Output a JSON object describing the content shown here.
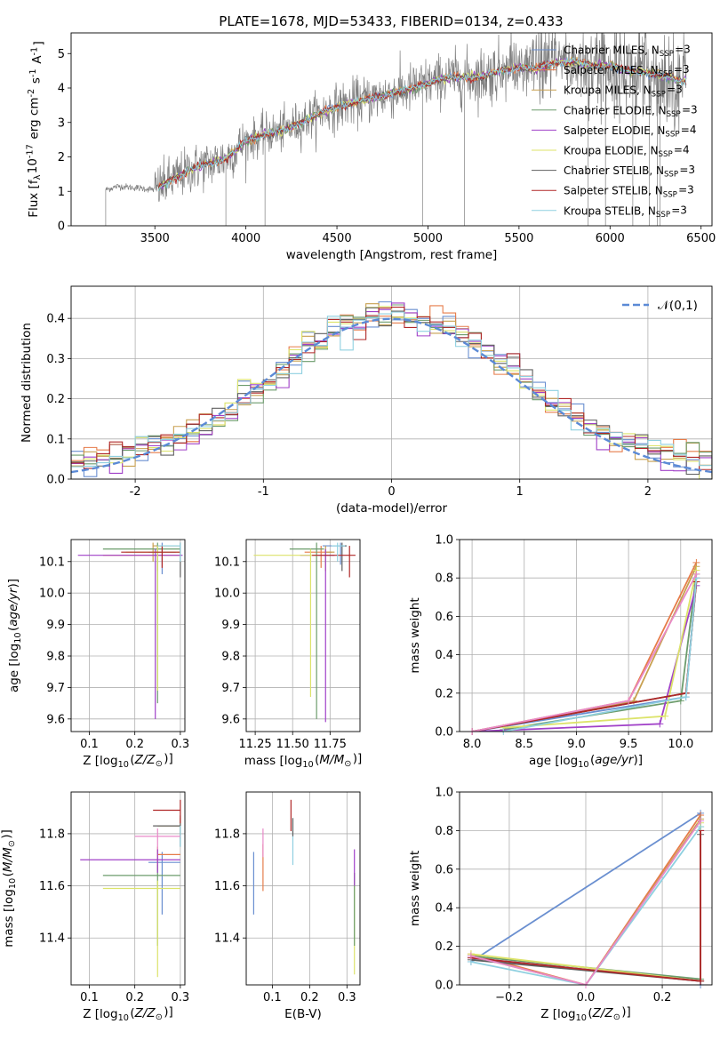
{
  "figure": {
    "title": "PLATE=1678, MJD=53433, FIBERID=0134, z=0.433"
  },
  "chart_data": [
    {
      "id": "spectrum",
      "type": "line",
      "title": "PLATE=1678, MJD=53433, FIBERID=0134, z=0.433",
      "xlabel": "wavelength [Angstrom, rest frame]",
      "ylabel": "Flux [f$_\\lambda$10$^{-17}$ erg cm$^{-2}$ s$^{-1}$ A$^{-1}$]",
      "xlim": [
        3040,
        6560
      ],
      "ylim": [
        0,
        5.6
      ],
      "xticks": [
        3500,
        4000,
        4500,
        5000,
        5500,
        6000,
        6500
      ],
      "yticks": [
        0,
        1,
        2,
        3,
        4,
        5
      ],
      "grid": false,
      "legend_position": "top-right",
      "data_color": "#808080",
      "data_anchor": {
        "x": [
          3230,
          3300,
          3400,
          3500,
          3600,
          3700,
          3800,
          3900,
          4000,
          4100,
          4200,
          4300,
          4400,
          4500,
          4600,
          4700,
          4800,
          4900,
          5000,
          5100,
          5200,
          5300,
          5400,
          5500,
          5600,
          5700,
          5800,
          5900,
          6000,
          6100,
          6200,
          6300,
          6400
        ],
        "y": [
          1.05,
          1.15,
          1.1,
          1.05,
          1.35,
          1.65,
          1.8,
          2.0,
          2.45,
          2.65,
          2.75,
          3.0,
          3.25,
          3.45,
          3.6,
          3.7,
          3.85,
          3.95,
          4.15,
          4.3,
          4.3,
          4.35,
          4.5,
          4.6,
          4.55,
          4.75,
          4.75,
          4.65,
          4.65,
          4.5,
          4.45,
          4.35,
          4.2
        ]
      },
      "series": [
        {
          "name": "Chabrier MILES, N$_{SSP}$=3",
          "color": "#6a8fd0"
        },
        {
          "name": "Salpeter MILES, N$_{SSP}$=3",
          "color": "#e67c4a"
        },
        {
          "name": "Kroupa MILES, N$_{SSP}$=3",
          "color": "#c8a050"
        },
        {
          "name": "Chabrier ELODIE, N$_{SSP}$=3",
          "color": "#6c9c6c"
        },
        {
          "name": "Salpeter ELODIE, N$_{SSP}$=4",
          "color": "#a040c8"
        },
        {
          "name": "Kroupa ELODIE, N$_{SSP}$=4",
          "color": "#dce36a"
        },
        {
          "name": "Chabrier STELIB, N$_{SSP}$=3",
          "color": "#606060"
        },
        {
          "name": "Salpeter STELIB, N$_{SSP}$=3",
          "color": "#b02828"
        },
        {
          "name": "Kroupa STELIB, N$_{SSP}$=3",
          "color": "#8fd0e0"
        }
      ]
    },
    {
      "id": "residuals",
      "type": "line",
      "xlabel": "(data-model)/error",
      "ylabel": "Normed distribution",
      "xlim": [
        -2.5,
        2.5
      ],
      "ylim": [
        0,
        0.48
      ],
      "xticks": [
        -2,
        -1,
        0,
        1,
        2
      ],
      "yticks": [
        0.0,
        0.1,
        0.2,
        0.3,
        0.4
      ],
      "grid": true,
      "legend_position": "top-right",
      "legend": "$\\mathcal{N}(0,1)$",
      "gaussian": {
        "mean": 0,
        "sigma": 1,
        "color": "#5b8ad6"
      },
      "histogram_bin_width": 0.1,
      "histogram_colors": [
        "#6a8fd0",
        "#e67c4a",
        "#c8a050",
        "#6c9c6c",
        "#a040c8",
        "#dce36a",
        "#606060",
        "#b02828",
        "#8fd0e0"
      ]
    },
    {
      "id": "age-vs-Z",
      "type": "scatter",
      "xlabel": "Z [log$_{10}$($Z/Z_\\odot$)]",
      "ylabel": "age  [log$_{10}$($age/yr$)]",
      "xlim": [
        0.06,
        0.31
      ],
      "ylim": [
        9.56,
        10.17
      ],
      "xticks": [
        0.1,
        0.2,
        0.3
      ],
      "yticks": [
        9.6,
        9.7,
        9.8,
        9.9,
        10.0,
        10.1
      ],
      "grid": true,
      "points": [
        {
          "x": 0.26,
          "y": 10.13,
          "xerr": [
            0.03,
            0.03
          ],
          "yerr": [
            0.07,
            0.03
          ],
          "color": "#6a8fd0"
        },
        {
          "x": 0.25,
          "y": 10.12,
          "xerr": [
            0.12,
            0.05
          ],
          "yerr": [
            0.05,
            0.03
          ],
          "color": "#e67c4a"
        },
        {
          "x": 0.24,
          "y": 10.15,
          "xerr": [
            0.0,
            0.06
          ],
          "yerr": [
            0.05,
            0.01
          ],
          "color": "#c8a050"
        },
        {
          "x": 0.25,
          "y": 10.14,
          "xerr": [
            0.12,
            0.05
          ],
          "yerr": [
            0.49,
            0.02
          ],
          "color": "#6c9c6c"
        },
        {
          "x": 0.245,
          "y": 10.12,
          "xerr": [
            0.17,
            0.06
          ],
          "yerr": [
            0.52,
            0.02
          ],
          "color": "#a040c8"
        },
        {
          "x": 0.25,
          "y": 10.13,
          "xerr": [
            0.07,
            0.05
          ],
          "yerr": [
            0.44,
            0.02
          ],
          "color": "#dce36a"
        },
        {
          "x": 0.3,
          "y": 10.13,
          "xerr": [
            0.0,
            0.0
          ],
          "yerr": [
            0.08,
            0.03
          ],
          "color": "#606060"
        },
        {
          "x": 0.26,
          "y": 10.13,
          "xerr": [
            0.09,
            0.04
          ],
          "yerr": [
            0.05,
            0.02
          ],
          "color": "#b02828"
        },
        {
          "x": 0.3,
          "y": 10.15,
          "xerr": [
            0.05,
            0.0
          ],
          "yerr": [
            0.05,
            0.01
          ],
          "color": "#8fd0e0"
        }
      ]
    },
    {
      "id": "age-vs-mass",
      "type": "scatter",
      "xlabel": "mass [log$_{10}$($M/M_\\odot$)]",
      "xlim": [
        11.19,
        11.95
      ],
      "ylim": [
        9.56,
        10.17
      ],
      "xticks": [
        11.25,
        11.5,
        11.75
      ],
      "yticks": [
        9.6,
        9.7,
        9.8,
        9.9,
        10.0,
        10.1
      ],
      "grid": true,
      "points": [
        {
          "x": 11.82,
          "y": 10.15,
          "xerr": [
            0.12,
            0.04
          ],
          "yerr": [
            0.06,
            0.01
          ],
          "color": "#6a8fd0"
        },
        {
          "x": 11.69,
          "y": 10.13,
          "xerr": [
            0.11,
            0.07
          ],
          "yerr": [
            0.05,
            0.02
          ],
          "color": "#e67c4a"
        },
        {
          "x": 11.72,
          "y": 10.13,
          "xerr": [
            0.0,
            0.06
          ],
          "yerr": [
            0.06,
            0.02
          ],
          "color": "#c8a050"
        },
        {
          "x": 11.66,
          "y": 10.14,
          "xerr": [
            0.18,
            0.05
          ],
          "yerr": [
            0.54,
            0.02
          ],
          "color": "#6c9c6c"
        },
        {
          "x": 11.72,
          "y": 10.12,
          "xerr": [
            0.17,
            0.06
          ],
          "yerr": [
            0.53,
            0.02
          ],
          "color": "#a040c8"
        },
        {
          "x": 11.62,
          "y": 10.12,
          "xerr": [
            0.38,
            0.05
          ],
          "yerr": [
            0.45,
            0.02
          ],
          "color": "#dce36a"
        },
        {
          "x": 11.83,
          "y": 10.15,
          "xerr": [
            0.0,
            0.03
          ],
          "yerr": [
            0.08,
            0.01
          ],
          "color": "#606060"
        },
        {
          "x": 11.88,
          "y": 10.12,
          "xerr": [
            0.25,
            0.04
          ],
          "yerr": [
            0.07,
            0.03
          ],
          "color": "#b02828"
        },
        {
          "x": 11.8,
          "y": 10.15,
          "xerr": [
            0.04,
            0.05
          ],
          "yerr": [
            0.05,
            0.01
          ],
          "color": "#8fd0e0"
        }
      ]
    },
    {
      "id": "massweight-vs-age",
      "type": "line",
      "xlabel": "age  [log$_{10}$($age/yr$)]",
      "ylabel": "mass weight",
      "xlim": [
        7.88,
        10.3
      ],
      "ylim": [
        0,
        1
      ],
      "xticks": [
        8.0,
        8.5,
        9.0,
        9.5,
        10.0
      ],
      "yticks": [
        0.0,
        0.2,
        0.4,
        0.6,
        0.8,
        1.0
      ],
      "grid": true,
      "series": [
        {
          "color": "#6a8fd0",
          "x": [
            8.0,
            10.05,
            10.15
          ],
          "y": [
            0.0,
            0.18,
            0.8
          ]
        },
        {
          "color": "#e67c4a",
          "x": [
            8.0,
            9.5,
            10.15
          ],
          "y": [
            0.0,
            0.16,
            0.88
          ]
        },
        {
          "color": "#c8a050",
          "x": [
            8.0,
            9.55,
            10.15
          ],
          "y": [
            0.0,
            0.16,
            0.86
          ]
        },
        {
          "color": "#6c9c6c",
          "x": [
            8.3,
            10.0,
            10.15
          ],
          "y": [
            0.01,
            0.16,
            0.82
          ]
        },
        {
          "color": "#a040c8",
          "x": [
            8.0,
            9.8,
            10.15
          ],
          "y": [
            0.0,
            0.04,
            0.76
          ]
        },
        {
          "color": "#dce36a",
          "x": [
            8.3,
            9.85,
            10.15
          ],
          "y": [
            0.02,
            0.08,
            0.84
          ]
        },
        {
          "color": "#606060",
          "x": [
            8.0,
            10.05,
            10.15
          ],
          "y": [
            0.0,
            0.2,
            0.78
          ]
        },
        {
          "color": "#b02828",
          "x": [
            8.0,
            10.05,
            10.15
          ],
          "y": [
            0.0,
            0.2,
            0.78
          ]
        },
        {
          "color": "#8fd0e0",
          "x": [
            8.3,
            10.05,
            10.15
          ],
          "y": [
            0.0,
            0.18,
            0.8
          ]
        },
        {
          "color": "#e88ac8",
          "x": [
            8.0,
            9.5,
            10.15
          ],
          "y": [
            0.0,
            0.16,
            0.82
          ]
        }
      ]
    },
    {
      "id": "mass-vs-Z",
      "type": "scatter",
      "xlabel": "Z [log$_{10}$($Z/Z_\\odot$)]",
      "ylabel": "mass [log$_{10}$($M/M_\\odot$)]",
      "xlim": [
        0.06,
        0.31
      ],
      "ylim": [
        11.22,
        11.96
      ],
      "xticks": [
        0.1,
        0.2,
        0.3
      ],
      "yticks": [
        11.4,
        11.6,
        11.8
      ],
      "grid": true,
      "points": [
        {
          "x": 0.26,
          "y": 11.69,
          "xerr": [
            0.03,
            0.04
          ],
          "yerr": [
            0.2,
            0.04
          ],
          "color": "#6a8fd0"
        },
        {
          "x": 0.25,
          "y": 11.72,
          "xerr": [
            0.0,
            0.05
          ],
          "yerr": [
            0.06,
            0.03
          ],
          "color": "#e67c4a"
        },
        {
          "x": 0.3,
          "y": 11.83,
          "xerr": [
            0.05,
            0.0
          ],
          "yerr": [
            0.05,
            0.03
          ],
          "color": "#c8a050"
        },
        {
          "x": 0.25,
          "y": 11.64,
          "xerr": [
            0.12,
            0.05
          ],
          "yerr": [
            0.27,
            0.04
          ],
          "color": "#6c9c6c"
        },
        {
          "x": 0.25,
          "y": 11.7,
          "xerr": [
            0.17,
            0.05
          ],
          "yerr": [
            0.05,
            0.04
          ],
          "color": "#a040c8"
        },
        {
          "x": 0.25,
          "y": 11.59,
          "xerr": [
            0.12,
            0.05
          ],
          "yerr": [
            0.34,
            0.03
          ],
          "color": "#dce36a"
        },
        {
          "x": 0.3,
          "y": 11.83,
          "xerr": [
            0.06,
            0.0
          ],
          "yerr": [
            0.08,
            0.04
          ],
          "color": "#606060"
        },
        {
          "x": 0.3,
          "y": 11.89,
          "xerr": [
            0.06,
            0.0
          ],
          "yerr": [
            0.05,
            0.04
          ],
          "color": "#b02828"
        },
        {
          "x": 0.3,
          "y": 11.8,
          "xerr": [
            0.0,
            0.0
          ],
          "yerr": [
            0.05,
            0.03
          ],
          "color": "#8fd0e0"
        },
        {
          "x": 0.25,
          "y": 11.79,
          "xerr": [
            0.05,
            0.05
          ],
          "yerr": [
            0.05,
            0.03
          ],
          "color": "#e88ac8"
        }
      ]
    },
    {
      "id": "mass-vs-EBV",
      "type": "scatter",
      "xlabel": "E(B-V)",
      "xlim": [
        0.03,
        0.335
      ],
      "ylim": [
        11.22,
        11.96
      ],
      "xticks": [
        0.1,
        0.2,
        0.3
      ],
      "yticks": [
        11.4,
        11.6,
        11.8
      ],
      "grid": true,
      "points": [
        {
          "x": 0.05,
          "y": 11.6,
          "xerr": [
            0,
            0
          ],
          "yerr": [
            0.11,
            0.13
          ],
          "color": "#6a8fd0"
        },
        {
          "x": 0.075,
          "y": 11.7,
          "xerr": [
            0,
            0
          ],
          "yerr": [
            0.12,
            0.06
          ],
          "color": "#e67c4a"
        },
        {
          "x": 0.075,
          "y": 11.75,
          "xerr": [
            0,
            0
          ],
          "yerr": [
            0.04,
            0.07
          ],
          "color": "#e88ac8"
        },
        {
          "x": 0.15,
          "y": 11.85,
          "xerr": [
            0,
            0
          ],
          "yerr": [
            0.04,
            0.08
          ],
          "color": "#b02828"
        },
        {
          "x": 0.155,
          "y": 11.8,
          "xerr": [
            0,
            0
          ],
          "yerr": [
            0.12,
            0.06
          ],
          "color": "#8fd0e0"
        },
        {
          "x": 0.155,
          "y": 11.83,
          "xerr": [
            0,
            0
          ],
          "yerr": [
            0.04,
            0.03
          ],
          "color": "#606060"
        },
        {
          "x": 0.32,
          "y": 11.6,
          "xerr": [
            0,
            0
          ],
          "yerr": [
            0.34,
            0.05
          ],
          "color": "#dce36a"
        },
        {
          "x": 0.32,
          "y": 11.6,
          "xerr": [
            0,
            0
          ],
          "yerr": [
            0.23,
            0.05
          ],
          "color": "#6c9c6c"
        },
        {
          "x": 0.32,
          "y": 11.65,
          "xerr": [
            0,
            0
          ],
          "yerr": [
            0.05,
            0.09
          ],
          "color": "#a040c8"
        }
      ]
    },
    {
      "id": "massweight-vs-Z",
      "type": "line",
      "xlabel": "Z [log$_{10}$($Z/Z_\\odot$)]",
      "ylabel": "mass weight",
      "xlim": [
        -0.33,
        0.33
      ],
      "ylim": [
        0,
        1
      ],
      "xticks": [
        -0.2,
        0.0,
        0.2
      ],
      "yticks": [
        0.0,
        0.2,
        0.4,
        0.6,
        0.8,
        1.0
      ],
      "grid": true,
      "series": [
        {
          "color": "#6a8fd0",
          "x": [
            -0.3,
            0.3,
            0.3
          ],
          "y": [
            0.12,
            0.89,
            0.0
          ]
        },
        {
          "color": "#e67c4a",
          "x": [
            -0.3,
            0.0,
            0.3
          ],
          "y": [
            0.16,
            0.0,
            0.88
          ]
        },
        {
          "color": "#c8a050",
          "x": [
            -0.3,
            0.0,
            0.3
          ],
          "y": [
            0.15,
            0.0,
            0.86
          ]
        },
        {
          "color": "#6c9c6c",
          "x": [
            -0.3,
            0.3,
            0.3
          ],
          "y": [
            0.15,
            0.03,
            0.82
          ]
        },
        {
          "color": "#a040c8",
          "x": [
            -0.3,
            0.3,
            0.3
          ],
          "y": [
            0.14,
            0.02,
            0.8
          ]
        },
        {
          "color": "#dce36a",
          "x": [
            -0.3,
            0.3,
            0.3
          ],
          "y": [
            0.16,
            0.02,
            0.84
          ]
        },
        {
          "color": "#606060",
          "x": [
            -0.3,
            0.3,
            0.3
          ],
          "y": [
            0.13,
            0.02,
            0.78
          ]
        },
        {
          "color": "#b02828",
          "x": [
            -0.3,
            0.3,
            0.3
          ],
          "y": [
            0.14,
            0.02,
            0.8
          ]
        },
        {
          "color": "#8fd0e0",
          "x": [
            -0.3,
            0.0,
            0.3
          ],
          "y": [
            0.12,
            0.0,
            0.82
          ]
        },
        {
          "color": "#e88ac8",
          "x": [
            -0.3,
            0.0,
            0.3
          ],
          "y": [
            0.15,
            0.0,
            0.85
          ]
        }
      ]
    }
  ]
}
